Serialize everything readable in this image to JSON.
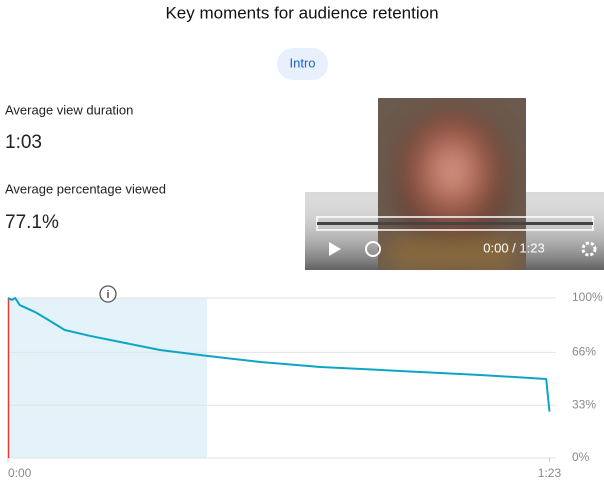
{
  "header": {
    "title": "Key moments for audience retention"
  },
  "tab": "Intro",
  "stats": [
    {
      "label": "Average view duration",
      "value": "1:03"
    },
    {
      "label": "Average percentage viewed",
      "value": "77.1%"
    }
  ],
  "player": {
    "time": "0:00 / 1:23"
  },
  "chart_data": {
    "type": "line",
    "x": [
      0,
      0.6,
      1.1,
      1.8,
      4.1,
      5.7,
      8.7,
      12.6,
      17.2,
      23.3,
      30.5,
      38.7,
      47.9,
      60.1,
      72.4,
      82.5,
      83
    ],
    "series": [
      {
        "name": "Intro",
        "color": "#0da5c6",
        "values": [
          100,
          98.8,
          100,
          95.6,
          91.3,
          87.5,
          80,
          76.3,
          72.5,
          67.5,
          63.8,
          60,
          56.9,
          54.4,
          51.9,
          49.4,
          29
        ]
      }
    ],
    "highlight_x": [
      0,
      30.5
    ],
    "xlim": [
      0,
      84
    ],
    "xticks": [
      {
        "value": 0,
        "label": "0:00"
      },
      {
        "value": 83,
        "label": "1:23"
      }
    ],
    "ylim": [
      0,
      100
    ],
    "yticks": [
      {
        "value": 0,
        "label": "0%"
      },
      {
        "value": 33,
        "label": "33%"
      },
      {
        "value": 66,
        "label": "66%"
      },
      {
        "value": 100,
        "label": "100%"
      }
    ],
    "grid": true
  }
}
